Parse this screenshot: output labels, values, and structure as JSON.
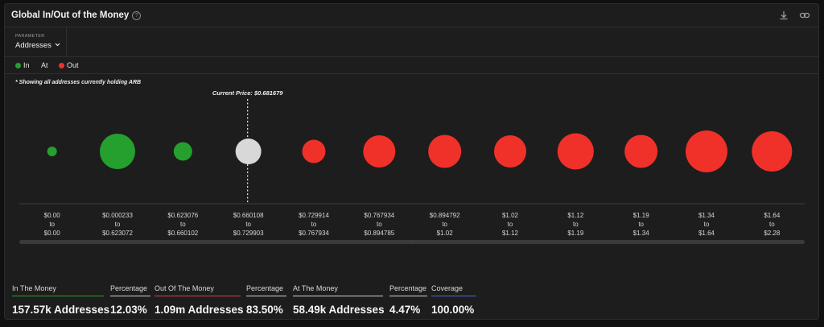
{
  "title": "Global In/Out of the Money",
  "parameter": {
    "label": "PARAMETER",
    "value": "Addresses"
  },
  "legend": [
    {
      "label": "In",
      "color": "#25a02e"
    },
    {
      "label": "At",
      "color": ""
    },
    {
      "label": "Out",
      "color": "#f0312a"
    }
  ],
  "note": "* Showing all addresses currently holding ARB",
  "chart_data": {
    "type": "bubble",
    "title": "Global In/Out of the Money",
    "current_price_label": "Current Price: $0.681679",
    "current_price_bucket_index": 3,
    "colors": {
      "in": "#25a02e",
      "at": "#d8d8d8",
      "out": "#f0312a"
    },
    "buckets": [
      {
        "from": "$0.00",
        "to": "$0.00",
        "status": "in",
        "size": 6
      },
      {
        "from": "$0.000233",
        "to": "$0.623072",
        "status": "in",
        "size": 22
      },
      {
        "from": "$0.623076",
        "to": "$0.660102",
        "status": "in",
        "size": 11.5
      },
      {
        "from": "$0.660108",
        "to": "$0.729903",
        "status": "at",
        "size": 16
      },
      {
        "from": "$0.729914",
        "to": "$0.767934",
        "status": "out",
        "size": 14.5
      },
      {
        "from": "$0.767934",
        "to": "$0.894785",
        "status": "out",
        "size": 20
      },
      {
        "from": "$0.894792",
        "to": "$1.02",
        "status": "out",
        "size": 20.5
      },
      {
        "from": "$1.02",
        "to": "$1.12",
        "status": "out",
        "size": 20
      },
      {
        "from": "$1.12",
        "to": "$1.19",
        "status": "out",
        "size": 22.5
      },
      {
        "from": "$1.19",
        "to": "$1.34",
        "status": "out",
        "size": 20.5
      },
      {
        "from": "$1.34",
        "to": "$1.64",
        "status": "out",
        "size": 26
      },
      {
        "from": "$1.64",
        "to": "$2.28",
        "status": "out",
        "size": 25
      }
    ],
    "to_word": "to"
  },
  "stats": {
    "in_label": "In The Money",
    "in_value": "157.57k Addresses",
    "in_color": "#25a02e",
    "in_pct_label": "Percentage",
    "in_pct_value": "12.03%",
    "out_label": "Out Of The Money",
    "out_value": "1.09m Addresses",
    "out_color": "#d9423a",
    "out_pct_label": "Percentage",
    "out_pct_value": "83.50%",
    "at_label": "At The Money",
    "at_value": "58.49k Addresses",
    "at_color": "#cfcfcf",
    "at_pct_label": "Percentage",
    "at_pct_value": "4.47%",
    "coverage_label": "Coverage",
    "coverage_value": "100.00%",
    "coverage_color": "#3d6fd6",
    "pct_color": "#cfcfcf"
  }
}
